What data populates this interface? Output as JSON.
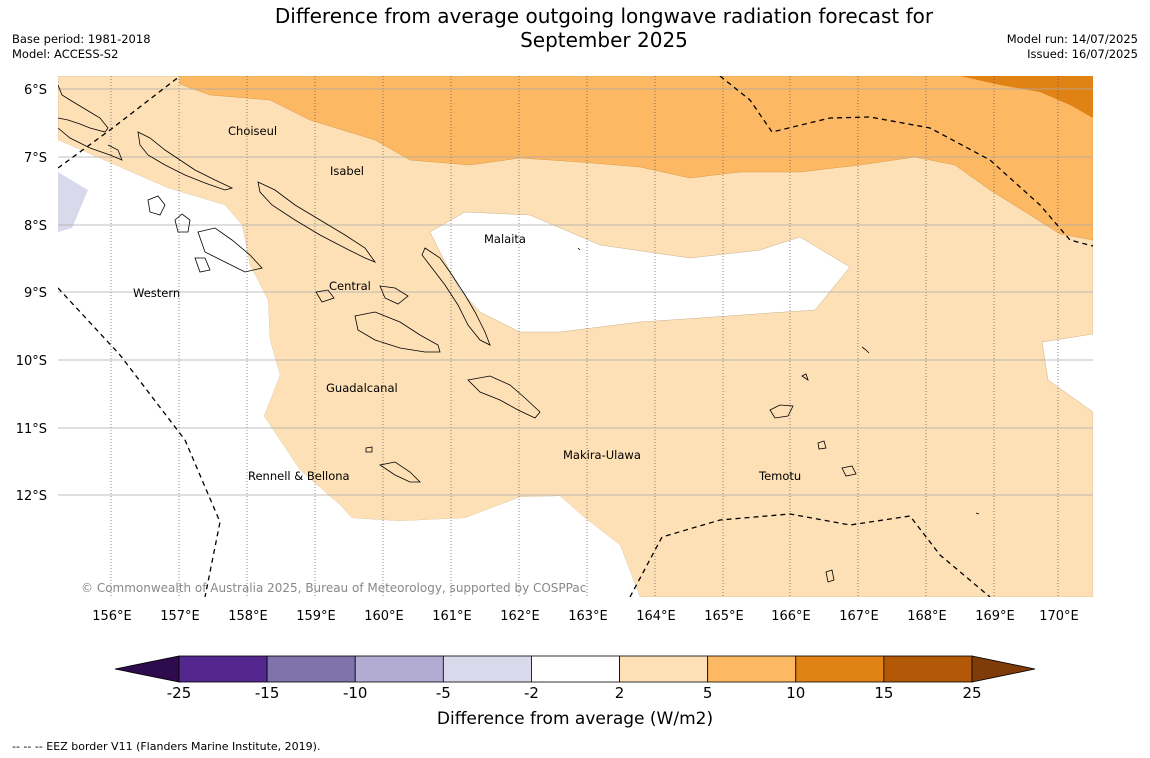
{
  "title": "Difference from average outgoing longwave radiation forecast for September 2025",
  "title_line1": "Difference from average outgoing longwave radiation forecast for",
  "title_line2": "September 2025",
  "base_period": "Base period: 1981-2018",
  "model": "Model: ACCESS-S2",
  "model_run": "Model run: 14/07/2025",
  "issued": "Issued: 16/07/2025",
  "copyright": "© Commonwealth of Australia 2025, Bureau of Meteorology, supported by COSPPac",
  "lat_labels": [
    "6°S",
    "7°S",
    "8°S",
    "9°S",
    "10°S",
    "11°S",
    "12°S"
  ],
  "lon_labels": [
    "156°E",
    "157°E",
    "158°E",
    "159°E",
    "160°E",
    "161°E",
    "162°E",
    "163°E",
    "164°E",
    "165°E",
    "166°E",
    "167°E",
    "168°E",
    "169°E",
    "170°E"
  ],
  "region_labels": [
    "Choiseul",
    "Isabel",
    "Malaita",
    "Western",
    "Central",
    "Guadalcanal",
    "Makira-Ulawa",
    "Rennell & Bellona",
    "Temotu"
  ],
  "colorbar": {
    "title": "Difference from average (W/m2)",
    "ticks": [
      "-25",
      "-15",
      "-10",
      "-5",
      "-2",
      "2",
      "5",
      "10",
      "15",
      "25"
    ],
    "colors": [
      "#2d0b4d",
      "#54278f",
      "#8073ac",
      "#b2abd2",
      "#d8daeb",
      "#ffffff",
      "#fee0b6",
      "#fdb863",
      "#e08214",
      "#b35806",
      "#7f3b08"
    ]
  },
  "footnote": "--  --  -- EEZ border V11 (Flanders Marine Institute, 2019)."
}
